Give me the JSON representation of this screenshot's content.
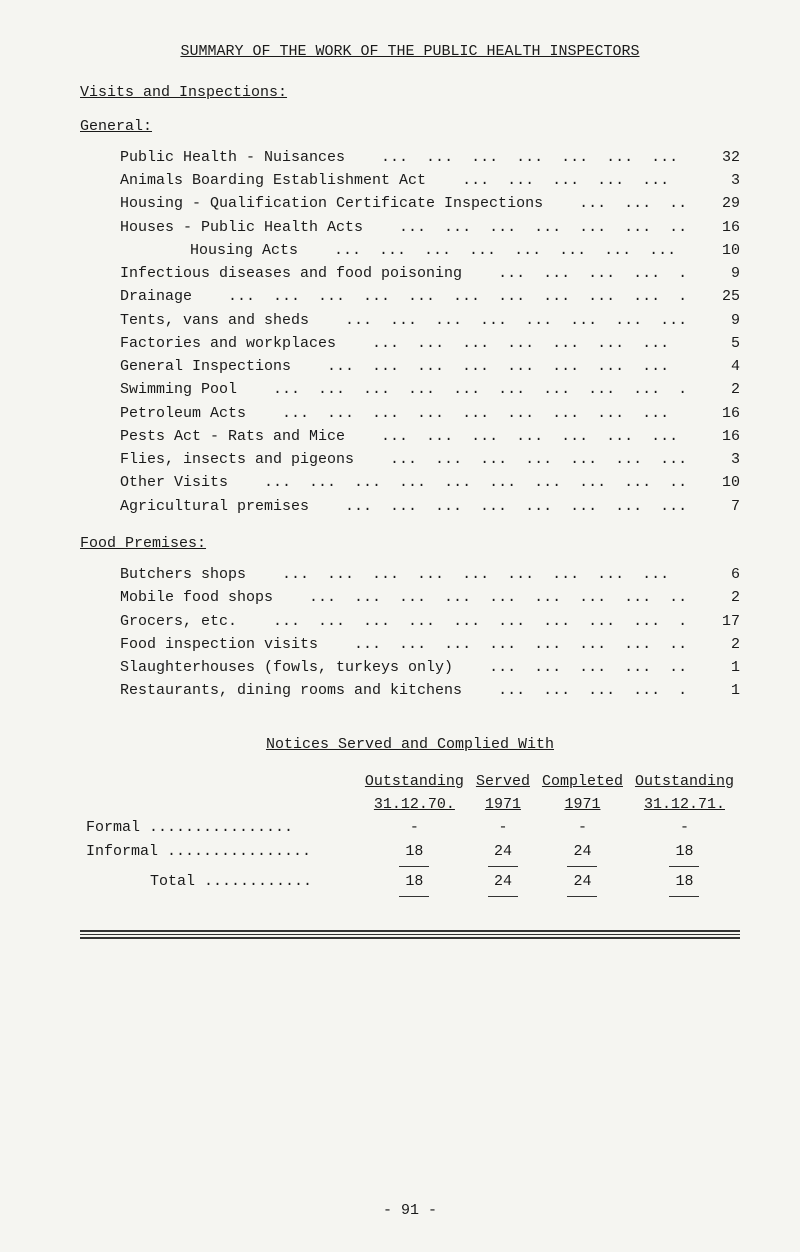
{
  "title": "SUMMARY OF THE WORK OF THE PUBLIC HEALTH INSPECTORS",
  "sections": {
    "visits": "Visits and Inspections:",
    "general": "General:",
    "food": "Food Premises:"
  },
  "general_items": [
    {
      "label": "Public Health - Nuisances",
      "value": "32",
      "indent": false
    },
    {
      "label": "Animals Boarding Establishment Act",
      "value": "3",
      "indent": false
    },
    {
      "label": "Housing - Qualification Certificate Inspections",
      "value": "29",
      "indent": false
    },
    {
      "label": "Houses - Public Health Acts",
      "value": "16",
      "indent": false
    },
    {
      "label": "Housing Acts",
      "value": "10",
      "indent": true
    },
    {
      "label": "Infectious diseases and food poisoning",
      "value": "9",
      "indent": false
    },
    {
      "label": "Drainage",
      "value": "25",
      "indent": false
    },
    {
      "label": "Tents, vans and sheds",
      "value": "9",
      "indent": false
    },
    {
      "label": "Factories and workplaces",
      "value": "5",
      "indent": false
    },
    {
      "label": "General Inspections",
      "value": "4",
      "indent": false
    },
    {
      "label": "Swimming Pool",
      "value": "2",
      "indent": false
    },
    {
      "label": "Petroleum Acts",
      "value": "16",
      "indent": false
    },
    {
      "label": "Pests Act - Rats and Mice",
      "value": "16",
      "indent": false
    },
    {
      "label": "Flies, insects and pigeons",
      "value": "3",
      "indent": false
    },
    {
      "label": "Other Visits",
      "value": "10",
      "indent": false
    },
    {
      "label": "Agricultural premises",
      "value": "7",
      "indent": false
    }
  ],
  "food_items": [
    {
      "label": "Butchers shops",
      "value": "6"
    },
    {
      "label": "Mobile food shops",
      "value": "2"
    },
    {
      "label": "Grocers, etc.",
      "value": "17"
    },
    {
      "label": "Food inspection visits",
      "value": "2"
    },
    {
      "label": "Slaughterhouses (fowls, turkeys only)",
      "value": "1"
    },
    {
      "label": "Restaurants, dining rooms and kitchens",
      "value": "1"
    }
  ],
  "notices": {
    "title": "Notices Served and Complied With",
    "headers": {
      "c1_top": "Outstanding",
      "c1_bot": "31.12.70.",
      "c2_top": "Served",
      "c2_bot": "1971",
      "c3_top": "Completed",
      "c3_bot": "1971",
      "c4_top": "Outstanding",
      "c4_bot": "31.12.71."
    },
    "rows": [
      {
        "label": "Formal",
        "c1": "-",
        "c2": "-",
        "c3": "-",
        "c4": "-"
      },
      {
        "label": "Informal",
        "c1": "18",
        "c2": "24",
        "c3": "24",
        "c4": "18"
      }
    ],
    "total": {
      "label": "Total",
      "c1": "18",
      "c2": "24",
      "c3": "24",
      "c4": "18"
    }
  },
  "pagenum": "- 91 -",
  "dots_pattern": "    ...  ...  ...  ...  ...  ...  ...  ...  ...  ...  ...  ...  ...",
  "row_dots": " ................",
  "total_dots": " ............"
}
